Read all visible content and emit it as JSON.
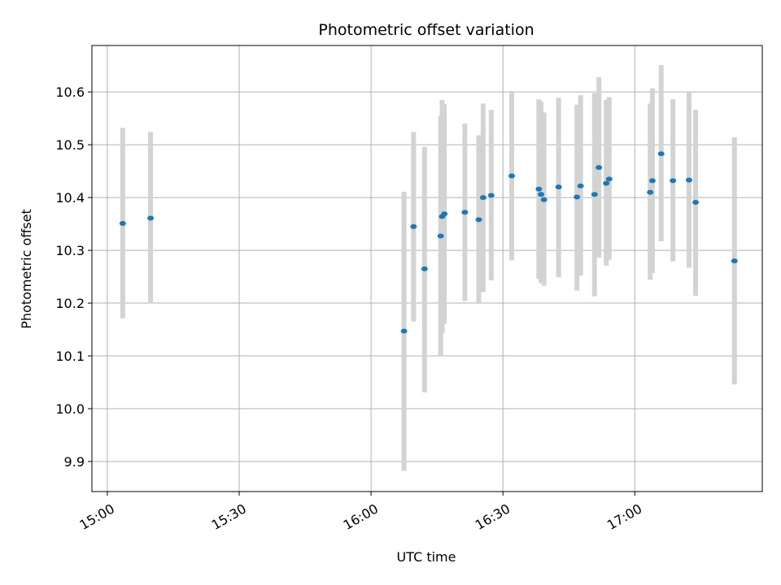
{
  "chart_data": {
    "type": "scatter",
    "title": "Photometric offset variation",
    "xlabel": "UTC time",
    "ylabel": "Photometric offset",
    "x_tick_labels": [
      "15:00",
      "15:30",
      "16:00",
      "16:30",
      "17:00"
    ],
    "x_ticks": [
      "15:00",
      "15:30",
      "16:00",
      "16:30",
      "17:00"
    ],
    "y_ticks": [
      9.9,
      10.0,
      10.1,
      10.2,
      10.3,
      10.4,
      10.5,
      10.6
    ],
    "xlim": [
      "14:56:30",
      "17:29:00"
    ],
    "ylim": [
      9.843,
      10.688
    ],
    "grid": true,
    "marker_color": "#1f77b4",
    "errorbar_color": "#d3d3d3",
    "points": [
      {
        "t": "15:03:30",
        "y": 10.351,
        "lo": 10.171,
        "hi": 10.532
      },
      {
        "t": "15:09:50",
        "y": 10.361,
        "lo": 10.199,
        "hi": 10.524
      },
      {
        "t": "16:07:30",
        "y": 10.147,
        "lo": 9.882,
        "hi": 10.411
      },
      {
        "t": "16:09:40",
        "y": 10.345,
        "lo": 10.165,
        "hi": 10.524
      },
      {
        "t": "16:12:10",
        "y": 10.265,
        "lo": 10.031,
        "hi": 10.496
      },
      {
        "t": "16:15:50",
        "y": 10.327,
        "lo": 10.1,
        "hi": 10.555
      },
      {
        "t": "16:16:10",
        "y": 10.364,
        "lo": 10.143,
        "hi": 10.585
      },
      {
        "t": "16:16:40",
        "y": 10.369,
        "lo": 10.161,
        "hi": 10.577
      },
      {
        "t": "16:21:20",
        "y": 10.372,
        "lo": 10.204,
        "hi": 10.54
      },
      {
        "t": "16:24:30",
        "y": 10.358,
        "lo": 10.2,
        "hi": 10.518
      },
      {
        "t": "16:25:30",
        "y": 10.4,
        "lo": 10.221,
        "hi": 10.578
      },
      {
        "t": "16:27:20",
        "y": 10.404,
        "lo": 10.243,
        "hi": 10.566
      },
      {
        "t": "16:32:00",
        "y": 10.441,
        "lo": 10.281,
        "hi": 10.602
      },
      {
        "t": "16:38:10",
        "y": 10.416,
        "lo": 10.246,
        "hi": 10.586
      },
      {
        "t": "16:38:40",
        "y": 10.406,
        "lo": 10.238,
        "hi": 10.582
      },
      {
        "t": "16:39:20",
        "y": 10.396,
        "lo": 10.233,
        "hi": 10.561
      },
      {
        "t": "16:42:40",
        "y": 10.42,
        "lo": 10.249,
        "hi": 10.589
      },
      {
        "t": "16:46:50",
        "y": 10.401,
        "lo": 10.224,
        "hi": 10.576
      },
      {
        "t": "16:47:40",
        "y": 10.422,
        "lo": 10.252,
        "hi": 10.594
      },
      {
        "t": "16:50:50",
        "y": 10.406,
        "lo": 10.213,
        "hi": 10.598
      },
      {
        "t": "16:51:50",
        "y": 10.457,
        "lo": 10.286,
        "hi": 10.628
      },
      {
        "t": "16:53:30",
        "y": 10.427,
        "lo": 10.271,
        "hi": 10.585
      },
      {
        "t": "16:54:10",
        "y": 10.435,
        "lo": 10.282,
        "hi": 10.59
      },
      {
        "t": "17:03:30",
        "y": 10.41,
        "lo": 10.244,
        "hi": 10.578
      },
      {
        "t": "17:04:00",
        "y": 10.432,
        "lo": 10.257,
        "hi": 10.607
      },
      {
        "t": "17:06:00",
        "y": 10.483,
        "lo": 10.317,
        "hi": 10.651
      },
      {
        "t": "17:08:40",
        "y": 10.432,
        "lo": 10.279,
        "hi": 10.586
      },
      {
        "t": "17:12:20",
        "y": 10.433,
        "lo": 10.267,
        "hi": 10.6
      },
      {
        "t": "17:13:50",
        "y": 10.391,
        "lo": 10.214,
        "hi": 10.566
      },
      {
        "t": "17:22:40",
        "y": 10.28,
        "lo": 10.046,
        "hi": 10.514
      }
    ]
  }
}
